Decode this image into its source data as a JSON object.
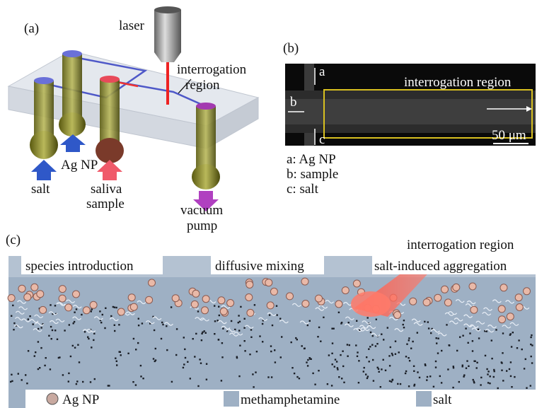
{
  "panel_a": {
    "label": "(a)",
    "laser": "laser",
    "interrogation_region": [
      "interrogation",
      "region"
    ],
    "ag_np": "Ag NP",
    "salt": "salt",
    "saliva_sample": [
      "saliva",
      "sample"
    ],
    "vacuum_pump": [
      "vacuum",
      "pump"
    ]
  },
  "panel_b": {
    "label": "(b)",
    "inlets": [
      "a",
      "b",
      "c"
    ],
    "interrogation_region": "interrogation region",
    "scale_bar": "50 μm",
    "legend": [
      "a: Ag NP",
      "b: sample",
      "c: salt"
    ]
  },
  "panel_c": {
    "label": "(c)",
    "interrogation_region": "interrogation region",
    "stages": [
      "species introduction",
      "diffusive mixing",
      "salt-induced aggregation"
    ],
    "legend": [
      "Ag NP",
      "methamphetamine",
      "salt"
    ]
  }
}
